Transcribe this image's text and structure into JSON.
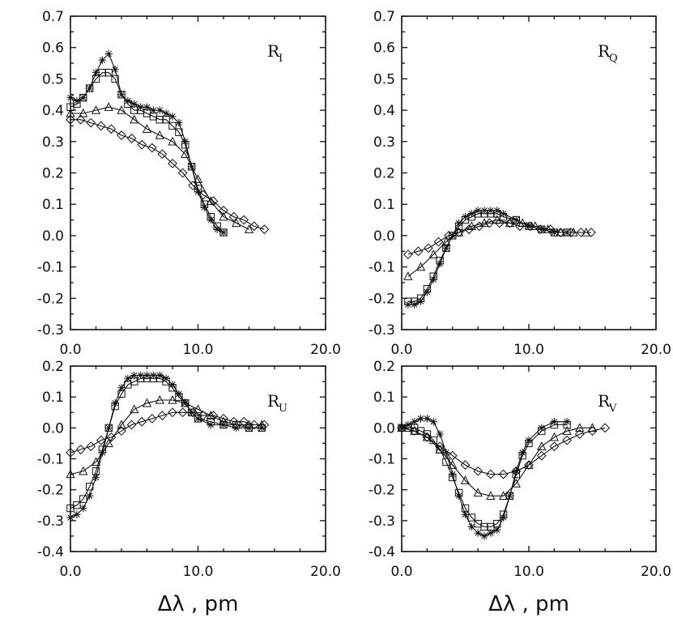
{
  "chart_data": [
    {
      "type": "line",
      "panel_label": "R",
      "panel_sub": "I",
      "xlim": [
        0,
        20
      ],
      "ylim": [
        -0.3,
        0.7
      ],
      "xticks": [
        "0.0",
        "10.0",
        "20.0"
      ],
      "yticks": [
        "0.7",
        "0.6",
        "0.5",
        "0.4",
        "0.3",
        "0.2",
        "0.1",
        "0.0",
        "-0.1",
        "-0.2",
        "-0.3"
      ],
      "xlabel": "",
      "series": [
        {
          "name": "asterisk",
          "marker": "star",
          "x": [
            0,
            0.5,
            1,
            1.5,
            2,
            2.5,
            3,
            3.5,
            4,
            4.5,
            5,
            5.5,
            6,
            6.5,
            7,
            7.5,
            8,
            8.5,
            9,
            9.5,
            10,
            10.5,
            11,
            11.5,
            12
          ],
          "y": [
            0.44,
            0.43,
            0.44,
            0.47,
            0.52,
            0.56,
            0.58,
            0.53,
            0.45,
            0.43,
            0.42,
            0.41,
            0.41,
            0.4,
            0.4,
            0.39,
            0.38,
            0.36,
            0.3,
            0.22,
            0.14,
            0.09,
            0.05,
            0.02,
            0.01
          ]
        },
        {
          "name": "square",
          "marker": "square",
          "x": [
            0,
            0.5,
            1,
            1.5,
            2,
            2.5,
            3,
            3.5,
            4,
            4.5,
            5,
            5.5,
            6,
            6.5,
            7,
            7.5,
            8,
            8.5,
            9,
            9.5,
            10,
            10.5,
            11,
            11.5,
            12
          ],
          "y": [
            0.41,
            0.42,
            0.44,
            0.47,
            0.5,
            0.52,
            0.52,
            0.5,
            0.45,
            0.42,
            0.4,
            0.4,
            0.39,
            0.38,
            0.37,
            0.37,
            0.35,
            0.33,
            0.29,
            0.22,
            0.15,
            0.1,
            0.06,
            0.03,
            0.01
          ]
        },
        {
          "name": "triangle",
          "marker": "triangle",
          "x": [
            0,
            1,
            2,
            3,
            4,
            5,
            6,
            7,
            8,
            9,
            10,
            11,
            12,
            13,
            14
          ],
          "y": [
            0.39,
            0.39,
            0.4,
            0.41,
            0.4,
            0.37,
            0.34,
            0.32,
            0.3,
            0.26,
            0.18,
            0.11,
            0.06,
            0.04,
            0.02
          ]
        },
        {
          "name": "diamond",
          "marker": "diamond",
          "x": [
            0,
            0.8,
            1.6,
            2.4,
            3.2,
            4,
            4.8,
            5.6,
            6.4,
            7.2,
            8,
            8.8,
            9.6,
            10.4,
            11.2,
            12,
            12.8,
            13.6,
            14.4,
            15.2
          ],
          "y": [
            0.37,
            0.37,
            0.36,
            0.35,
            0.34,
            0.32,
            0.31,
            0.29,
            0.28,
            0.26,
            0.23,
            0.2,
            0.16,
            0.13,
            0.11,
            0.08,
            0.06,
            0.05,
            0.03,
            0.02
          ]
        }
      ]
    },
    {
      "type": "line",
      "panel_label": "R",
      "panel_sub": "Q",
      "xlim": [
        0,
        20
      ],
      "ylim": [
        -0.3,
        0.7
      ],
      "xticks": [
        "0.0",
        "10.0",
        "20.0"
      ],
      "yticks": [
        "0.7",
        "0.6",
        "0.5",
        "0.4",
        "0.3",
        "0.2",
        "0.1",
        "0.0",
        "-0.1",
        "-0.2",
        "-0.3"
      ],
      "xlabel": "",
      "series": [
        {
          "name": "asterisk",
          "marker": "star",
          "x": [
            0.5,
            1,
            1.5,
            2,
            2.5,
            3,
            3.5,
            4,
            4.5,
            5,
            5.5,
            6,
            6.5,
            7,
            7.5,
            8,
            9,
            10,
            11,
            12,
            13
          ],
          "y": [
            -0.22,
            -0.22,
            -0.21,
            -0.18,
            -0.14,
            -0.09,
            -0.04,
            0.0,
            0.04,
            0.06,
            0.07,
            0.08,
            0.08,
            0.08,
            0.08,
            0.07,
            0.05,
            0.03,
            0.02,
            0.01,
            0.01
          ]
        },
        {
          "name": "square",
          "marker": "square",
          "x": [
            0.5,
            1,
            1.5,
            2,
            2.5,
            3,
            3.5,
            4,
            4.5,
            5,
            5.5,
            6,
            6.5,
            7,
            7.5,
            8,
            9,
            10,
            11,
            12,
            13
          ],
          "y": [
            -0.21,
            -0.21,
            -0.2,
            -0.17,
            -0.13,
            -0.08,
            -0.04,
            0.0,
            0.03,
            0.05,
            0.06,
            0.07,
            0.07,
            0.07,
            0.07,
            0.06,
            0.05,
            0.03,
            0.02,
            0.01,
            0.01
          ]
        },
        {
          "name": "triangle",
          "marker": "triangle",
          "x": [
            0.5,
            1.5,
            2.5,
            3.5,
            4.5,
            5.5,
            6.5,
            7.5,
            8.5,
            9.5,
            10.5,
            11.5,
            12.5,
            13.5,
            14.5
          ],
          "y": [
            -0.13,
            -0.1,
            -0.06,
            -0.02,
            0.01,
            0.03,
            0.04,
            0.05,
            0.04,
            0.04,
            0.03,
            0.02,
            0.01,
            0.01,
            0.01
          ]
        },
        {
          "name": "diamond",
          "marker": "diamond",
          "x": [
            0.5,
            1.3,
            2.1,
            2.9,
            3.7,
            4.5,
            5.3,
            6.1,
            6.9,
            7.7,
            8.5,
            9.3,
            10.1,
            10.9,
            11.7,
            12.5,
            13.3,
            14.1,
            14.9
          ],
          "y": [
            -0.06,
            -0.05,
            -0.04,
            -0.02,
            0.0,
            0.01,
            0.02,
            0.03,
            0.04,
            0.04,
            0.04,
            0.03,
            0.03,
            0.02,
            0.02,
            0.01,
            0.01,
            0.01,
            0.01
          ]
        }
      ]
    },
    {
      "type": "line",
      "panel_label": "R",
      "panel_sub": "U",
      "xlim": [
        0,
        20
      ],
      "ylim": [
        -0.4,
        0.2
      ],
      "xticks": [
        "0.0",
        "10.0",
        "20.0"
      ],
      "yticks": [
        "0.2",
        "0.1",
        "0.0",
        "-0.1",
        "-0.2",
        "-0.3",
        "-0.4"
      ],
      "xlabel": "Δλ , pm",
      "series": [
        {
          "name": "asterisk",
          "marker": "star",
          "x": [
            0,
            0.5,
            1,
            1.5,
            2,
            2.5,
            3,
            3.5,
            4,
            4.5,
            5,
            5.5,
            6,
            6.5,
            7,
            7.5,
            8,
            8.5,
            9,
            9.5,
            10,
            11,
            12,
            13,
            14,
            15
          ],
          "y": [
            -0.29,
            -0.28,
            -0.26,
            -0.22,
            -0.16,
            -0.08,
            0.0,
            0.08,
            0.13,
            0.16,
            0.17,
            0.17,
            0.17,
            0.17,
            0.17,
            0.16,
            0.14,
            0.11,
            0.08,
            0.05,
            0.03,
            0.01,
            0.01,
            0.0,
            0.0,
            0.0
          ]
        },
        {
          "name": "square",
          "marker": "square",
          "x": [
            0,
            0.5,
            1,
            1.5,
            2,
            2.5,
            3,
            3.5,
            4,
            4.5,
            5,
            5.5,
            6,
            6.5,
            7,
            7.5,
            8,
            8.5,
            9,
            9.5,
            10,
            11,
            12,
            13,
            14,
            15
          ],
          "y": [
            -0.26,
            -0.25,
            -0.23,
            -0.19,
            -0.14,
            -0.07,
            0.0,
            0.07,
            0.11,
            0.14,
            0.15,
            0.16,
            0.16,
            0.16,
            0.16,
            0.15,
            0.13,
            0.1,
            0.08,
            0.05,
            0.03,
            0.02,
            0.01,
            0.01,
            0.0,
            0.0
          ]
        },
        {
          "name": "triangle",
          "marker": "triangle",
          "x": [
            0,
            1,
            2,
            3,
            4,
            5,
            6,
            7,
            8,
            9,
            10,
            11,
            12,
            13,
            14,
            15
          ],
          "y": [
            -0.15,
            -0.14,
            -0.11,
            -0.05,
            0.01,
            0.06,
            0.08,
            0.09,
            0.09,
            0.08,
            0.06,
            0.04,
            0.02,
            0.01,
            0.01,
            0.01
          ]
        },
        {
          "name": "diamond",
          "marker": "diamond",
          "x": [
            0,
            0.8,
            1.6,
            2.4,
            3.2,
            4,
            4.8,
            5.6,
            6.4,
            7.2,
            8,
            8.8,
            9.6,
            10.4,
            11.2,
            12,
            12.8,
            13.6,
            14.4,
            15.2
          ],
          "y": [
            -0.08,
            -0.07,
            -0.06,
            -0.04,
            -0.03,
            -0.01,
            0.01,
            0.02,
            0.03,
            0.04,
            0.05,
            0.05,
            0.05,
            0.04,
            0.04,
            0.03,
            0.02,
            0.02,
            0.01,
            0.01
          ]
        }
      ]
    },
    {
      "type": "line",
      "panel_label": "R",
      "panel_sub": "V",
      "xlim": [
        0,
        20
      ],
      "ylim": [
        -0.4,
        0.2
      ],
      "xticks": [
        "0.0",
        "10.0",
        "20.0"
      ],
      "yticks": [
        "0.2",
        "0.1",
        "0.0",
        "-0.1",
        "-0.2",
        "-0.3",
        "-0.4"
      ],
      "xlabel": "Δλ , pm",
      "series": [
        {
          "name": "asterisk",
          "marker": "star",
          "x": [
            0,
            0.5,
            1,
            1.5,
            2,
            2.5,
            3,
            3.5,
            4,
            4.5,
            5,
            5.5,
            6,
            6.5,
            7,
            7.5,
            8,
            8.5,
            9,
            9.5,
            10,
            11,
            12,
            13
          ],
          "y": [
            0.0,
            0.01,
            0.02,
            0.03,
            0.03,
            0.02,
            -0.02,
            -0.08,
            -0.15,
            -0.22,
            -0.28,
            -0.32,
            -0.34,
            -0.35,
            -0.34,
            -0.33,
            -0.29,
            -0.22,
            -0.14,
            -0.08,
            -0.04,
            0.0,
            0.02,
            0.02
          ]
        },
        {
          "name": "square",
          "marker": "square",
          "x": [
            0,
            0.5,
            1,
            1.5,
            2,
            2.5,
            3,
            3.5,
            4,
            4.5,
            5,
            5.5,
            6,
            6.5,
            7,
            7.5,
            8,
            8.5,
            9,
            9.5,
            10,
            11,
            12,
            13
          ],
          "y": [
            0.0,
            0.0,
            0.0,
            -0.01,
            -0.02,
            -0.04,
            -0.07,
            -0.11,
            -0.16,
            -0.21,
            -0.26,
            -0.29,
            -0.31,
            -0.32,
            -0.32,
            -0.31,
            -0.28,
            -0.22,
            -0.15,
            -0.09,
            -0.05,
            -0.01,
            0.01,
            0.01
          ]
        },
        {
          "name": "triangle",
          "marker": "triangle",
          "x": [
            0,
            1,
            2,
            3,
            4,
            5,
            6,
            7,
            8,
            9,
            10,
            11,
            12,
            13,
            14,
            15
          ],
          "y": [
            0.0,
            -0.01,
            -0.03,
            -0.07,
            -0.12,
            -0.17,
            -0.21,
            -0.22,
            -0.22,
            -0.18,
            -0.12,
            -0.06,
            -0.03,
            -0.01,
            0.0,
            0.0
          ]
        },
        {
          "name": "diamond",
          "marker": "diamond",
          "x": [
            0,
            1,
            2,
            3,
            4,
            5,
            6,
            7,
            8,
            9,
            10,
            11,
            12,
            13,
            14,
            15,
            16
          ],
          "y": [
            0.0,
            -0.01,
            -0.03,
            -0.06,
            -0.09,
            -0.12,
            -0.14,
            -0.15,
            -0.15,
            -0.14,
            -0.12,
            -0.09,
            -0.06,
            -0.04,
            -0.02,
            -0.01,
            0.0
          ]
        }
      ]
    }
  ]
}
